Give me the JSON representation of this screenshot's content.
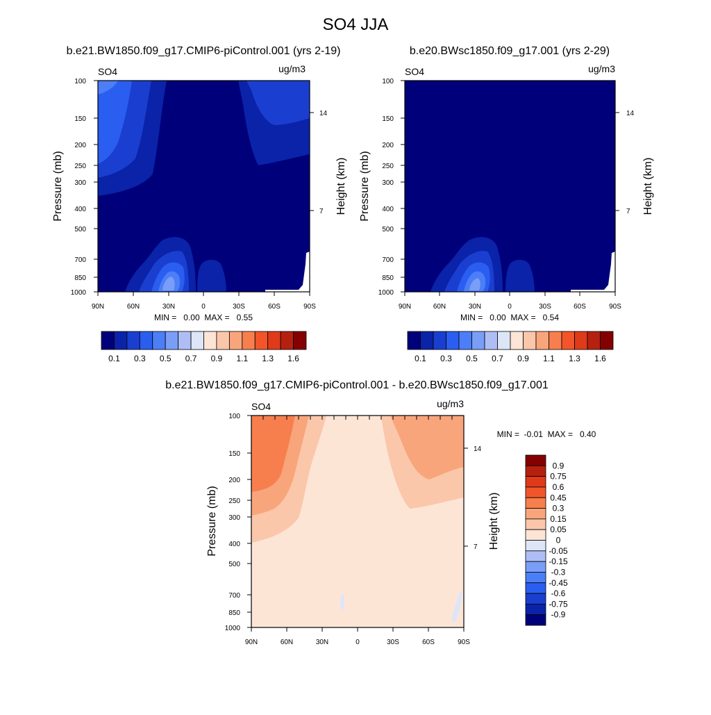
{
  "figure_title": "SO4 JJA",
  "colors": {
    "sequential": [
      "#00007a",
      "#0a23a8",
      "#1a3fd0",
      "#2a5ef0",
      "#4c7ef7",
      "#7a9ef8",
      "#aebef5",
      "#dde6f7",
      "#fde5d6",
      "#fbc7aa",
      "#f9a57c",
      "#f77f4e",
      "#f2552a",
      "#df3a1a",
      "#b6210f",
      "#850000"
    ],
    "diverging": [
      "#00007a",
      "#0a23a8",
      "#1a3fd0",
      "#2a5ef0",
      "#4c7ef7",
      "#7a9ef8",
      "#aebef5",
      "#dde6f7",
      "#fde5d6",
      "#fbc7aa",
      "#f9a57c",
      "#f77f4e",
      "#f2552a",
      "#df3a1a",
      "#b6210f",
      "#850000"
    ]
  },
  "colorbar_horizontal": {
    "labels": [
      "0.1",
      "0.3",
      "0.5",
      "0.7",
      "0.9",
      "1.1",
      "1.3",
      "1.6"
    ]
  },
  "colorbar_vertical": {
    "labels": [
      "0.9",
      "0.75",
      "0.6",
      "0.45",
      "0.3",
      "0.15",
      "0.05",
      "0",
      "-0.05",
      "-0.15",
      "-0.3",
      "-0.45",
      "-0.6",
      "-0.75",
      "-0.9"
    ]
  },
  "chart_data": [
    {
      "type": "heatmap",
      "title": "b.e21.BW1850.f09_g17.CMIP6-piControl.001 (yrs 2-19)",
      "left_label": "SO4",
      "right_label": "ug/m3",
      "xlabel": "",
      "ylabel": "Pressure (mb)",
      "ylabel_right": "Height (km)",
      "x_ticks": [
        "90N",
        "60N",
        "30N",
        "0",
        "30S",
        "60S",
        "90S"
      ],
      "y_ticks": [
        "100",
        "150",
        "200",
        "250",
        "300",
        "400",
        "500",
        "700",
        "850",
        "1000"
      ],
      "y_right_ticks": [
        "14",
        "7"
      ],
      "ylim": [
        1000,
        100
      ],
      "log_scale_y": true,
      "stats": "MIN =   0.00  MAX =   0.55",
      "min": 0.0,
      "max": 0.55
    },
    {
      "type": "heatmap",
      "title": "b.e20.BWsc1850.f09_g17.001 (yrs 2-29)",
      "left_label": "SO4",
      "right_label": "ug/m3",
      "xlabel": "",
      "ylabel": "Pressure (mb)",
      "ylabel_right": "Height (km)",
      "x_ticks": [
        "90N",
        "60N",
        "30N",
        "0",
        "30S",
        "60S",
        "90S"
      ],
      "y_ticks": [
        "100",
        "150",
        "200",
        "250",
        "300",
        "400",
        "500",
        "700",
        "850",
        "1000"
      ],
      "y_right_ticks": [
        "14",
        "7"
      ],
      "ylim": [
        1000,
        100
      ],
      "log_scale_y": true,
      "stats": "MIN =   0.00  MAX =   0.54",
      "min": 0.0,
      "max": 0.54
    },
    {
      "type": "heatmap",
      "title": "b.e21.BW1850.f09_g17.CMIP6-piControl.001 - b.e20.BWsc1850.f09_g17.001",
      "left_label": "SO4",
      "right_label": "ug/m3",
      "xlabel": "",
      "ylabel": "Pressure (mb)",
      "ylabel_right": "Height (km)",
      "x_ticks": [
        "90N",
        "60N",
        "30N",
        "0",
        "30S",
        "60S",
        "90S"
      ],
      "y_ticks": [
        "100",
        "150",
        "200",
        "250",
        "300",
        "400",
        "500",
        "700",
        "850",
        "1000"
      ],
      "y_right_ticks": [
        "14",
        "7"
      ],
      "ylim": [
        1000,
        100
      ],
      "log_scale_y": true,
      "stats": "MIN =  -0.01  MAX =   0.40",
      "min": -0.01,
      "max": 0.4
    }
  ]
}
